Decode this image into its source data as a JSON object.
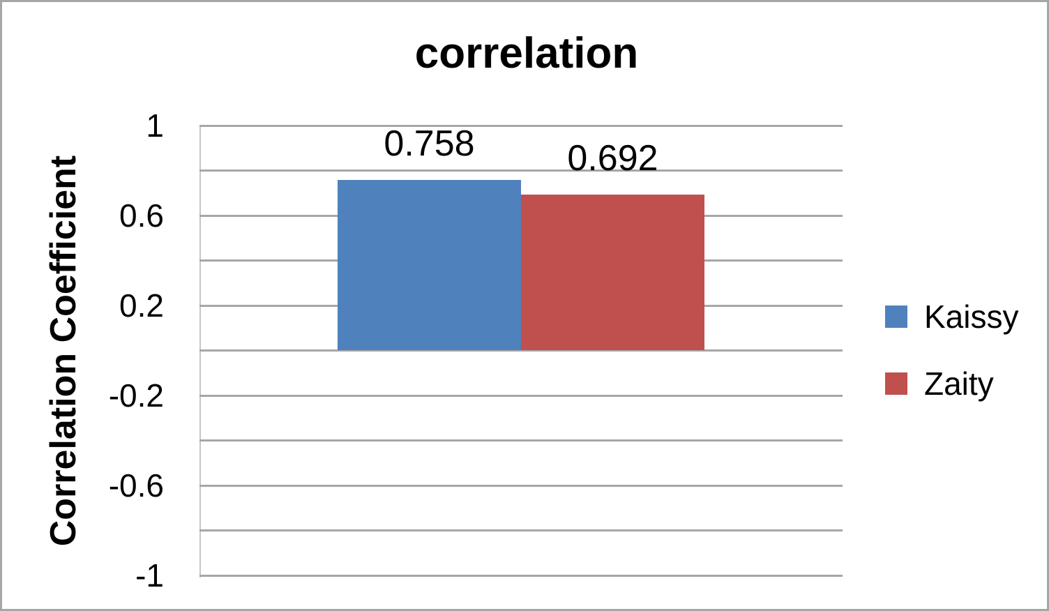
{
  "chart_data": {
    "type": "bar",
    "title": "correlation",
    "xlabel": "",
    "ylabel": "Correlation Coefficient",
    "categories": [
      ""
    ],
    "series": [
      {
        "name": "Kaissy",
        "values": [
          0.758
        ],
        "color": "#4F81BD"
      },
      {
        "name": "Zaity",
        "values": [
          0.692
        ],
        "color": "#C0504D"
      }
    ],
    "data_labels": [
      "0.758",
      "0.692"
    ],
    "ylim": [
      -1,
      1
    ],
    "gridline_step": 0.2,
    "yticks": [
      {
        "value": 1,
        "label": "1"
      },
      {
        "value": 0.6,
        "label": "0.6"
      },
      {
        "value": 0.2,
        "label": "0.2"
      },
      {
        "value": -0.2,
        "label": "-0.2"
      },
      {
        "value": -0.6,
        "label": "-0.6"
      },
      {
        "value": -1,
        "label": "-1"
      }
    ],
    "grid": true,
    "legend_position": "right",
    "colors": {
      "gridline": "#A6A6A6",
      "chart_border": "#A6A6A6",
      "axis_line": "#C6C6C6",
      "text": "#000000"
    }
  }
}
